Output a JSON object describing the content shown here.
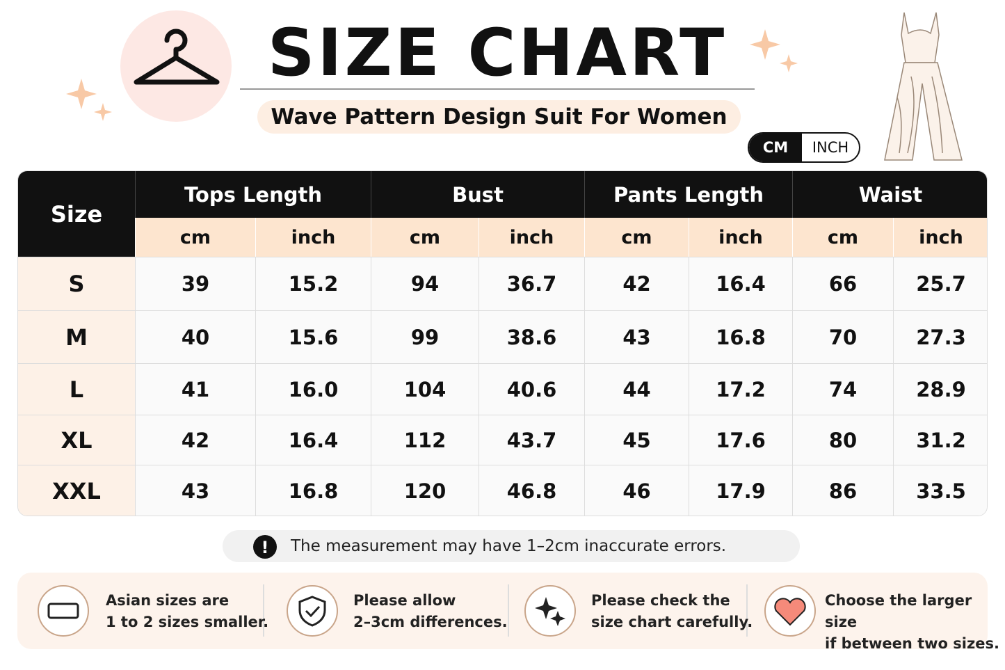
{
  "header": {
    "title": "SIZE CHART",
    "subtitle": "Wave Pattern Design Suit For Women"
  },
  "unit_toggle": [
    "CM",
    "INCH"
  ],
  "table": {
    "size_header": "Size",
    "groups": [
      {
        "label": "Tops Length",
        "units": [
          "cm",
          "inch"
        ]
      },
      {
        "label": "Bust",
        "units": [
          "cm",
          "inch"
        ]
      },
      {
        "label": "Pants Length",
        "units": [
          "cm",
          "inch"
        ]
      },
      {
        "label": "Waist",
        "units": [
          "cm",
          "inch"
        ]
      }
    ],
    "rows": [
      [
        "S",
        "39",
        "15.2",
        "94",
        "36.7",
        "42",
        "16.4",
        "66",
        "25.7"
      ],
      [
        "M",
        "40",
        "15.6",
        "99",
        "38.6",
        "43",
        "16.8",
        "70",
        "27.3"
      ],
      [
        "L",
        "41",
        "16.0",
        "104",
        "40.6",
        "44",
        "17.2",
        "74",
        "28.9"
      ],
      [
        "XL",
        "42",
        "16.4",
        "112",
        "43.7",
        "45",
        "17.6",
        "80",
        "31.2"
      ],
      [
        "XXL",
        "43",
        "16.8",
        "120",
        "46.8",
        "46",
        "17.9",
        "86",
        "33.5"
      ]
    ]
  },
  "note": "The measurement may have 1–2cm inaccurate errors.",
  "tips": [
    {
      "line1": "Asian sizes are",
      "line2": "1 to 2 sizes smaller."
    },
    {
      "line1": "Please allow",
      "line2": "2–3cm differences."
    },
    {
      "line1": "Please check the",
      "line2": "size chart carefully."
    },
    {
      "line1": "Choose the larger size",
      "line2": "if between two sizes."
    }
  ]
}
